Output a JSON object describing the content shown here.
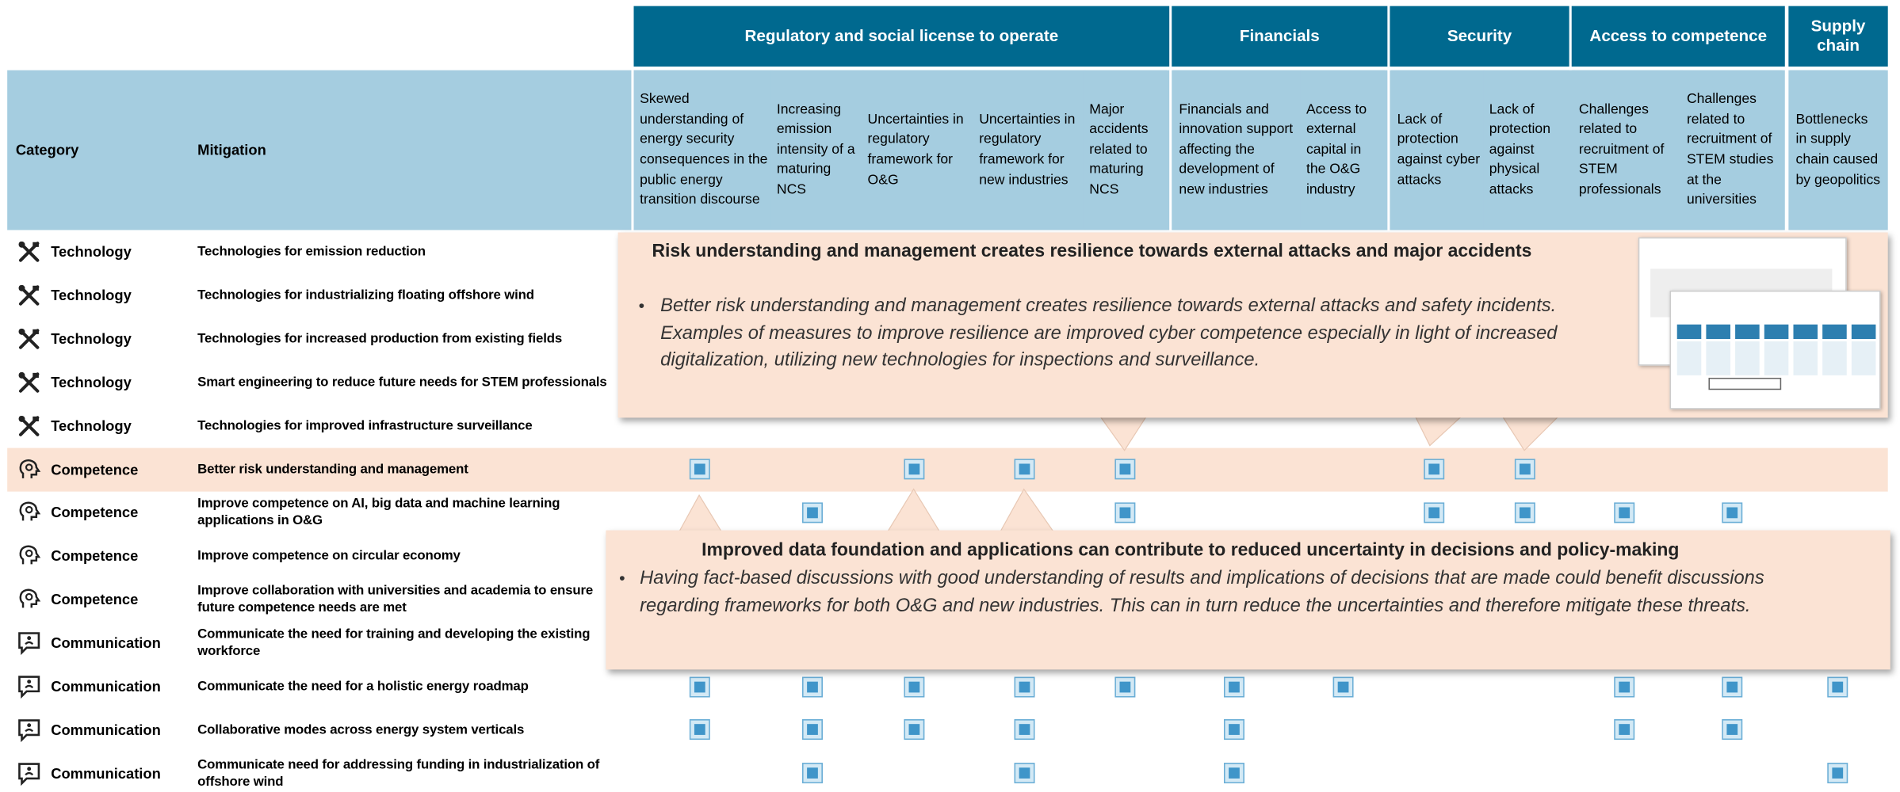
{
  "header": {
    "category_label": "Category",
    "mitigation_label": "Mitigation"
  },
  "groups": [
    {
      "label": "Regulatory and social license to operate",
      "columns": [
        "Skewed understanding of energy security consequences in the public energy transition discourse",
        "Increasing emission intensity of a maturing NCS",
        "Uncertainties in regulatory framework for O&G",
        "Uncertainties in regulatory framework for new industries",
        "Major accidents related to maturing NCS"
      ]
    },
    {
      "label": "Financials",
      "columns": [
        "Financials and innovation support affecting the development of new industries",
        "Access to external capital in the O&G industry"
      ]
    },
    {
      "label": "Security",
      "columns": [
        "Lack of protection against cyber attacks",
        "Lack of protection against physical attacks"
      ]
    },
    {
      "label": "Access to competence",
      "columns": [
        "Challenges related to recruitment of STEM professionals",
        "Challenges related to recruitment of STEM studies at the universities"
      ]
    },
    {
      "label": "Supply chain",
      "columns": [
        "Bottlenecks in supply chain caused by geopolitics"
      ]
    }
  ],
  "rows": [
    {
      "category": "Technology",
      "mitigation": "Technologies for emission reduction",
      "checks": [
        false,
        false,
        false,
        false,
        false,
        false,
        false,
        false,
        false,
        false,
        false,
        false
      ]
    },
    {
      "category": "Technology",
      "mitigation": "Technologies for industrializing floating offshore wind",
      "checks": [
        false,
        false,
        false,
        false,
        false,
        false,
        false,
        false,
        false,
        false,
        false,
        false
      ]
    },
    {
      "category": "Technology",
      "mitigation": "Technologies for increased production from existing fields",
      "checks": [
        false,
        false,
        false,
        false,
        false,
        false,
        false,
        false,
        false,
        false,
        false,
        false
      ]
    },
    {
      "category": "Technology",
      "mitigation": "Smart engineering to reduce future needs for STEM professionals",
      "checks": [
        false,
        false,
        false,
        false,
        false,
        false,
        false,
        false,
        false,
        false,
        false,
        false
      ]
    },
    {
      "category": "Technology",
      "mitigation": "Technologies for improved infrastructure surveillance",
      "checks": [
        false,
        false,
        false,
        false,
        false,
        false,
        false,
        false,
        false,
        false,
        false,
        false
      ]
    },
    {
      "category": "Competence",
      "mitigation": "Better risk understanding and management",
      "highlighted": true,
      "checks": [
        true,
        false,
        true,
        true,
        true,
        false,
        false,
        true,
        true,
        false,
        false,
        false
      ]
    },
    {
      "category": "Competence",
      "mitigation": "Improve competence on AI, big data and machine learning applications in O&G",
      "checks": [
        false,
        true,
        false,
        false,
        true,
        false,
        false,
        true,
        true,
        true,
        true,
        false
      ]
    },
    {
      "category": "Competence",
      "mitigation": "Improve competence on circular economy",
      "checks": [
        false,
        false,
        false,
        false,
        false,
        false,
        false,
        false,
        false,
        false,
        false,
        false
      ]
    },
    {
      "category": "Competence",
      "mitigation": "Improve collaboration with universities and academia to ensure future competence needs are met",
      "checks": [
        false,
        false,
        false,
        false,
        false,
        false,
        false,
        false,
        false,
        false,
        false,
        false
      ]
    },
    {
      "category": "Communication",
      "mitigation": "Communicate the need for training and developing the existing workforce",
      "checks": [
        false,
        false,
        false,
        false,
        false,
        false,
        false,
        false,
        false,
        false,
        false,
        false
      ]
    },
    {
      "category": "Communication",
      "mitigation": "Communicate the need for a holistic energy roadmap",
      "checks": [
        true,
        true,
        true,
        true,
        true,
        true,
        true,
        false,
        false,
        true,
        true,
        true
      ]
    },
    {
      "category": "Communication",
      "mitigation": "Collaborative modes across energy system verticals",
      "checks": [
        true,
        true,
        true,
        true,
        false,
        true,
        false,
        false,
        false,
        true,
        true,
        false
      ]
    },
    {
      "category": "Communication",
      "mitigation": "Communicate need for addressing funding in industrialization of offshore wind",
      "checks": [
        false,
        true,
        false,
        true,
        false,
        true,
        false,
        false,
        false,
        false,
        false,
        true
      ]
    }
  ],
  "callouts": [
    {
      "title": "Risk understanding and management creates resilience towards external attacks and major accidents",
      "text": "Better risk understanding and management creates resilience towards external attacks and safety incidents. Examples of measures to improve resilience are improved cyber competence especially in light of increased digitalization, utilizing new technologies for inspections and surveillance."
    },
    {
      "title": "Improved data foundation and applications can contribute to reduced uncertainty in decisions and policy-making",
      "text": "Having fact-based discussions with good understanding of results and implications of decisions that are made could benefit discussions regarding frameworks for both O&G and new industries. This can in turn reduce the uncertainties and therefore mitigate these threats."
    }
  ]
}
